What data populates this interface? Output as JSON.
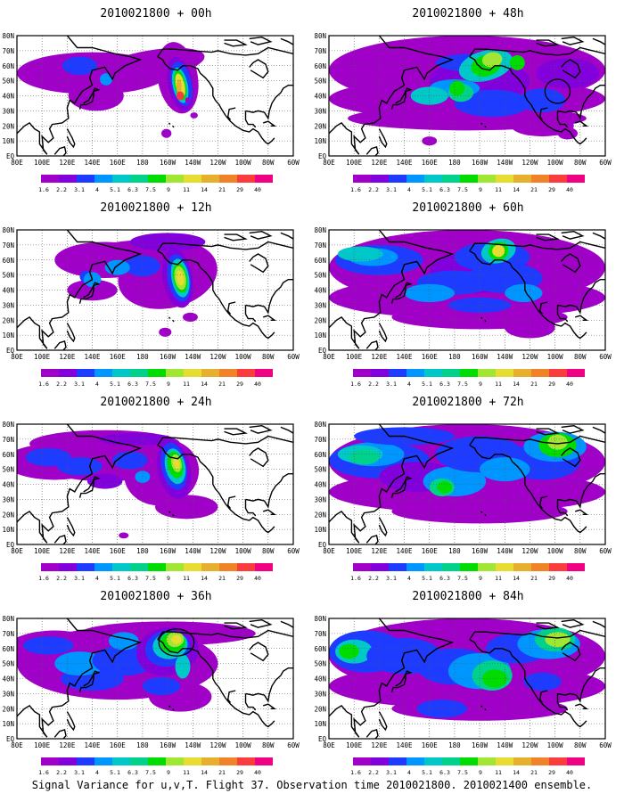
{
  "panels": [
    {
      "title": "2010021800 + 00h"
    },
    {
      "title": "2010021800 + 48h"
    },
    {
      "title": "2010021800 + 12h"
    },
    {
      "title": "2010021800 + 60h"
    },
    {
      "title": "2010021800 + 24h"
    },
    {
      "title": "2010021800 + 72h"
    },
    {
      "title": "2010021800 + 36h"
    },
    {
      "title": "2010021800 + 84h"
    }
  ],
  "axes": {
    "lat_labels": [
      "80N",
      "70N",
      "60N",
      "50N",
      "40N",
      "30N",
      "20N",
      "10N",
      "EQ"
    ],
    "lon_labels": [
      "80E",
      "100E",
      "120E",
      "140E",
      "160E",
      "180",
      "160W",
      "140W",
      "120W",
      "100W",
      "80W",
      "60W"
    ],
    "lon_range_deg": [
      80,
      300
    ],
    "lat_range_deg": [
      0,
      80
    ]
  },
  "legend": {
    "labels": [
      "1.6",
      "2.2",
      "3.1",
      "4",
      "5.1",
      "6.3",
      "7.5",
      "9",
      "11",
      "14",
      "21",
      "29",
      "40"
    ],
    "colors": [
      "#a000c8",
      "#8200dc",
      "#1e3cff",
      "#0096ff",
      "#00c8c8",
      "#00d28c",
      "#00dc00",
      "#a0e632",
      "#e6dc32",
      "#e6af2d",
      "#f08228",
      "#fa3c3c",
      "#f00082"
    ]
  },
  "caption": "Signal Variance for u,v,T. Flight 37. Observation time 2010021800. 2010021400 ensemble."
}
